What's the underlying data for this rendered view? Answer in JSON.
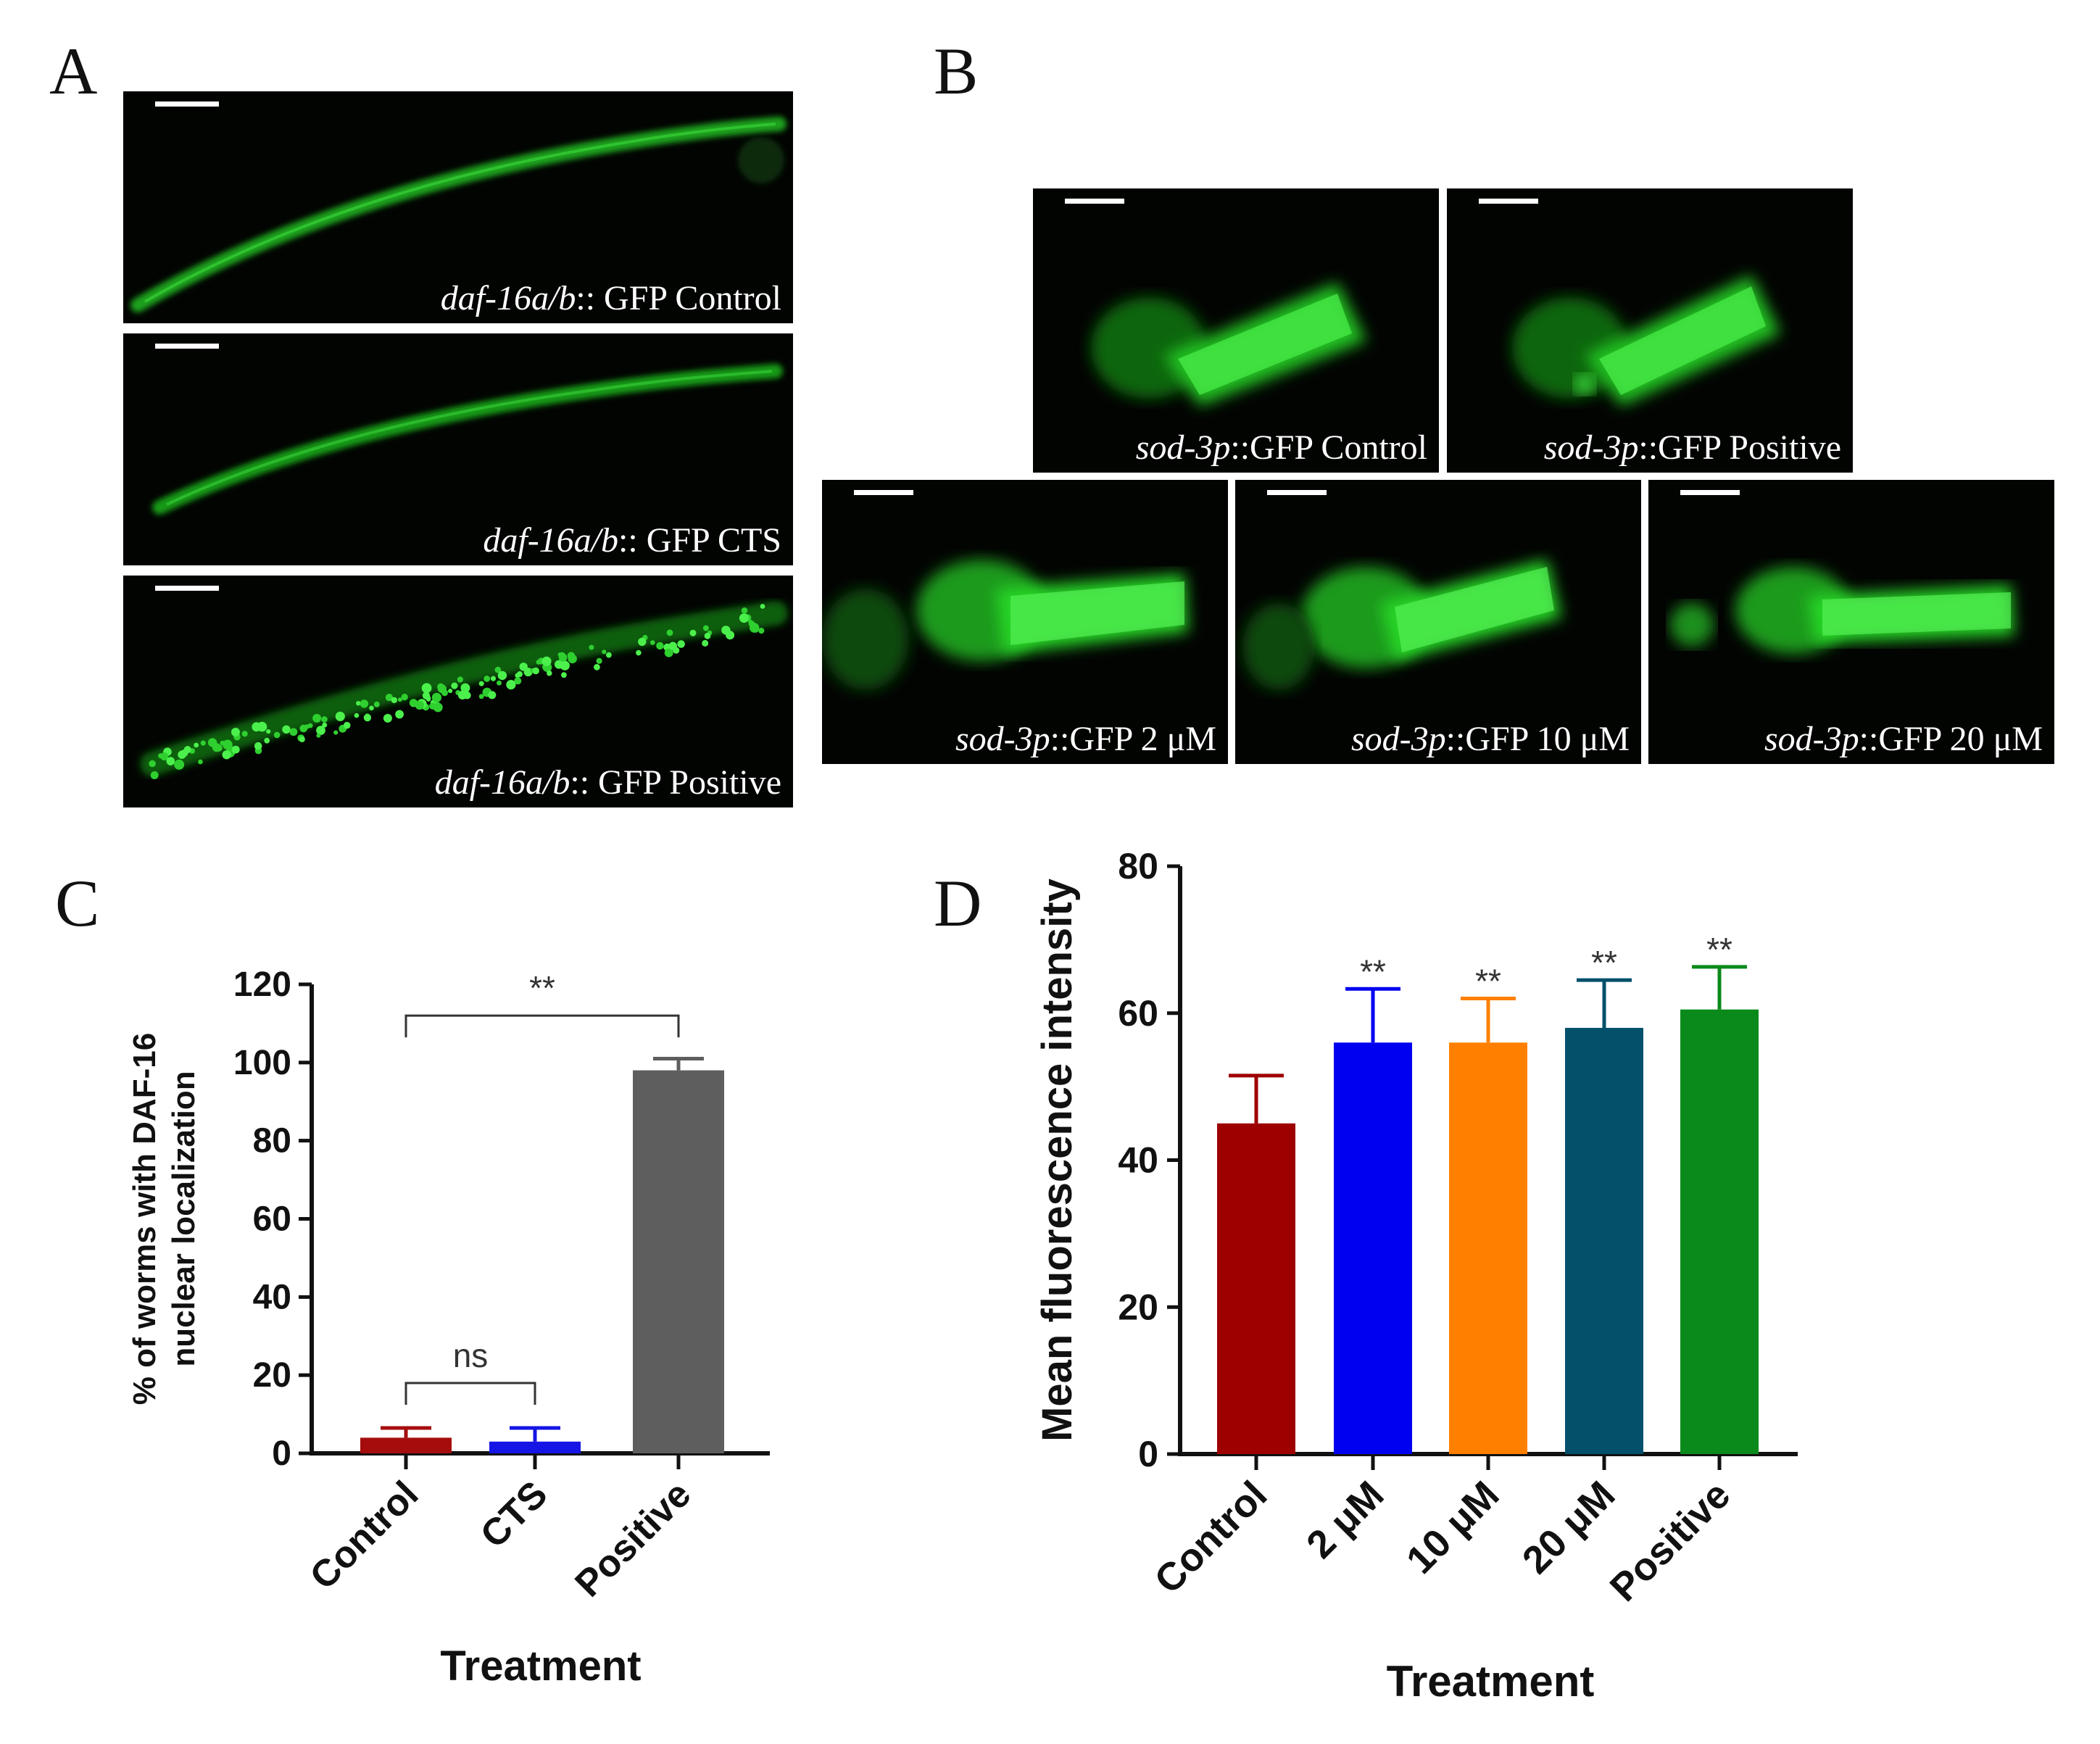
{
  "panels": {
    "A": {
      "letter": "A",
      "images": [
        {
          "italic": "daf-16a/b",
          "rest": ":: GFP  Control"
        },
        {
          "italic": "daf-16a/b",
          "rest": ":: GFP  CTS"
        },
        {
          "italic": "daf-16a/b",
          "rest": ":: GFP  Positive"
        }
      ]
    },
    "B": {
      "letter": "B",
      "images": [
        {
          "italic": "sod-3p",
          "rest": "::GFP  Control"
        },
        {
          "italic": "sod-3p",
          "rest": "::GFP  Positive"
        },
        {
          "italic": "sod-3p",
          "rest": "::GFP  2 μM"
        },
        {
          "italic": "sod-3p",
          "rest": "::GFP  10 μM"
        },
        {
          "italic": "sod-3p",
          "rest": "::GFP  20 μM"
        }
      ]
    },
    "C": {
      "letter": "C"
    },
    "D": {
      "letter": "D"
    }
  },
  "chart_data": [
    {
      "type": "bar",
      "panel": "C",
      "title": "",
      "categories": [
        "Control",
        "CTS",
        "Positive"
      ],
      "values": [
        4,
        3,
        98
      ],
      "errors": [
        2.5,
        3.5,
        3
      ],
      "colors": [
        "#a50d0d",
        "#1515e6",
        "#5e5e5e"
      ],
      "ylim": [
        0,
        120
      ],
      "yticks": [
        0,
        20,
        40,
        60,
        80,
        100,
        120
      ],
      "xlabel": "Treatment",
      "ylabel_lines": [
        "% of worms with DAF-16",
        "nuclear localization"
      ],
      "annotations": [
        {
          "from": 0,
          "to": 1,
          "text": "ns",
          "y": 18
        },
        {
          "from": 0,
          "to": 2,
          "text": "**",
          "y": 112
        }
      ]
    },
    {
      "type": "bar",
      "panel": "D",
      "title": "",
      "categories": [
        "Control",
        "2 μM",
        "10 μM",
        "20 μM",
        "Positive"
      ],
      "values": [
        45,
        56,
        56,
        58,
        60.5
      ],
      "errors": [
        6.5,
        7.3,
        6,
        6.5,
        5.8
      ],
      "colors": [
        "#9e0000",
        "#0000f0",
        "#ff8000",
        "#03506b",
        "#0a8a1a"
      ],
      "ylim": [
        0,
        80
      ],
      "yticks": [
        0,
        20,
        40,
        60,
        80
      ],
      "xlabel": "Treatment",
      "ylabel": "Mean fluorescence intensity",
      "significance": [
        "",
        "**",
        "**",
        "**",
        "**"
      ]
    }
  ]
}
